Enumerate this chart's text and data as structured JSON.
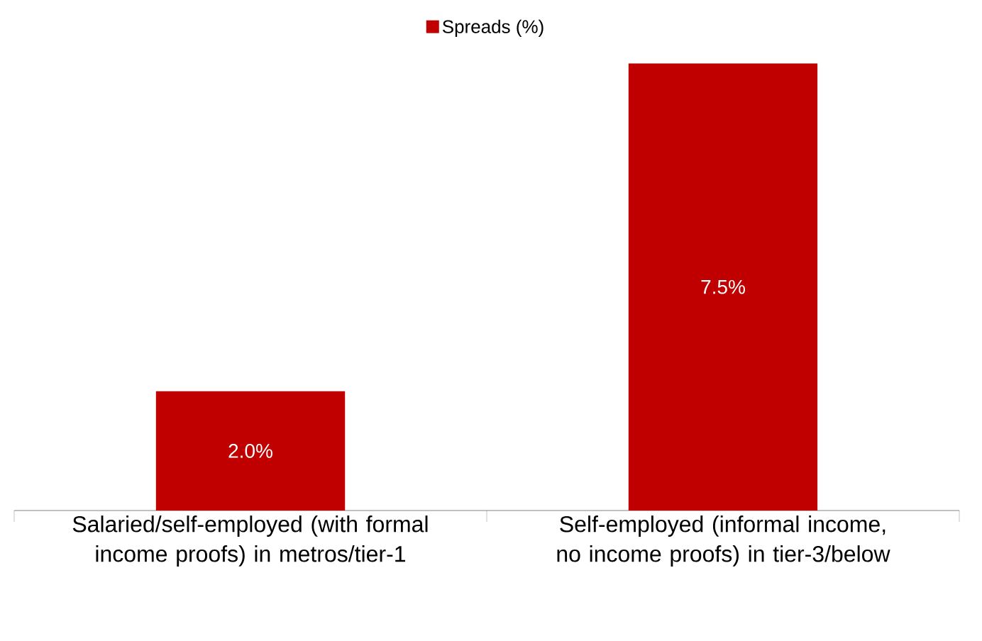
{
  "chart_data": {
    "type": "bar",
    "categories": [
      "Salaried/self-employed (with formal income proofs) in metros/tier-1",
      "Self-employed (informal income, no income proofs) in tier-3/below"
    ],
    "series": [
      {
        "name": "Spreads (%)",
        "color": "#c00000",
        "values": [
          2.0,
          7.5
        ],
        "value_labels": [
          "2.0%",
          "7.5%"
        ]
      }
    ],
    "legend": "top"
  }
}
